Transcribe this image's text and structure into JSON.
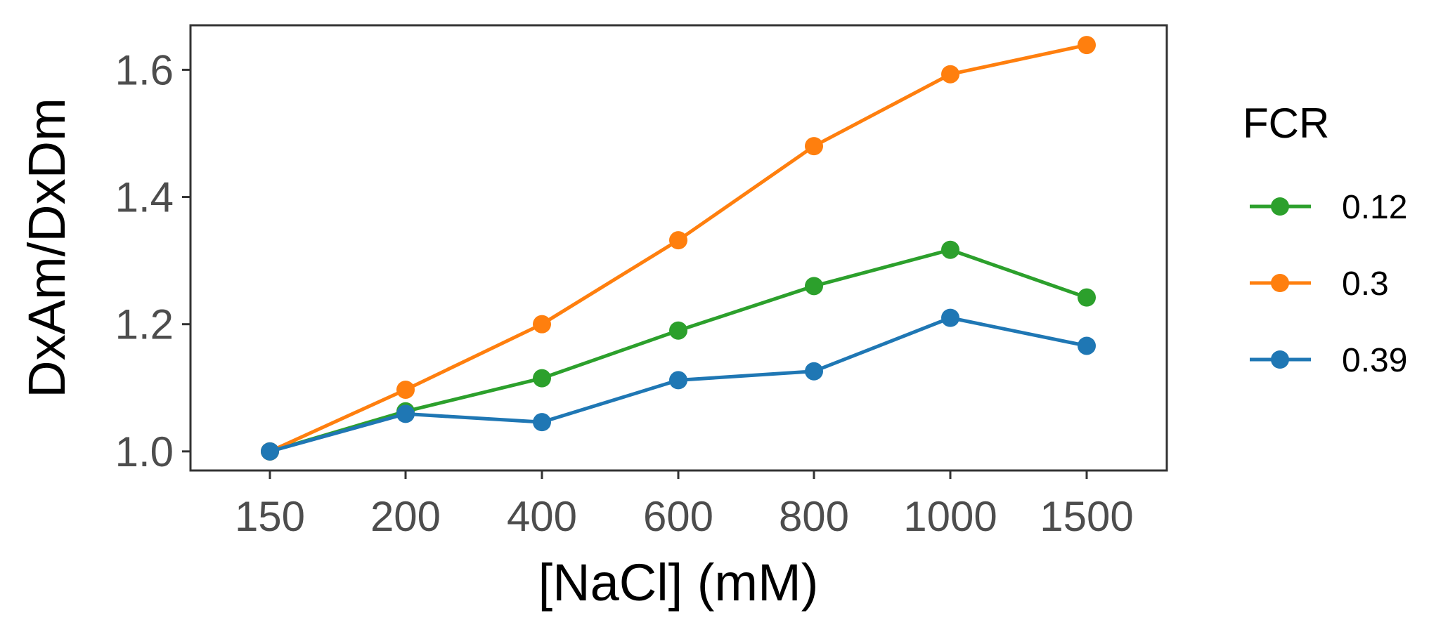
{
  "chart_data": {
    "type": "line",
    "title": "",
    "xlabel": "[NaCl] (mM)",
    "ylabel": "DxAm/DxDm",
    "x_axis_type": "categorical",
    "categories": [
      "150",
      "200",
      "400",
      "600",
      "800",
      "1000",
      "1500"
    ],
    "ylim": [
      0.97,
      1.67
    ],
    "y_ticks": [
      "1.0",
      "1.2",
      "1.4",
      "1.6"
    ],
    "grid": false,
    "legend": {
      "title": "FCR",
      "position": "right"
    },
    "series": [
      {
        "name": "0.12",
        "color": "#2ca02c",
        "values": [
          1.0,
          1.063,
          1.115,
          1.19,
          1.26,
          1.317,
          1.242
        ]
      },
      {
        "name": "0.3",
        "color": "#ff7f0e",
        "values": [
          1.0,
          1.097,
          1.2,
          1.332,
          1.48,
          1.593,
          1.639
        ]
      },
      {
        "name": "0.39",
        "color": "#1f77b4",
        "values": [
          1.0,
          1.059,
          1.046,
          1.112,
          1.126,
          1.21,
          1.166
        ]
      }
    ]
  }
}
